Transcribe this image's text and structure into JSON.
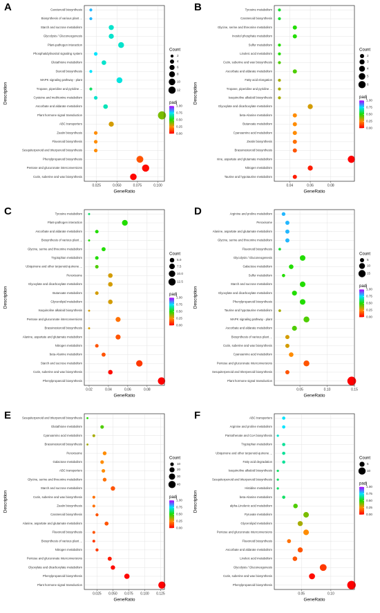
{
  "chart_data": [
    {
      "type": "scatter",
      "panel_label": "A",
      "xlabel": "GeneRatio",
      "ylabel": "Description",
      "categories": [
        "Carotenoid biosynthesis",
        "Biosynthesis of various plant ...",
        "Starch and sucrose metabolism",
        "Glycolysis / Gluconeogenesis",
        "Plant-pathogen interaction",
        "Phosphatidylinositol signaling system",
        "Glutathione metabolism",
        "Steroid biosynthesis",
        "MAPK signaling pathway - plant",
        "Tropane, piperidine and pyridine ...",
        "Cysteine and methionine metabolism",
        "Ascorbate and aldarate metabolism",
        "Plant hormone signal transduction",
        "ABC transporters",
        "Zeatin biosynthesis",
        "Flavonoid biosynthesis",
        "Sesquiterpenoid and triterpenoid biosynthesis",
        "Phenylpropanoid biosynthesis",
        "Pentose and glucuronate interconversions",
        "Cutin, suberine and wax biosynthesis"
      ],
      "x": [
        0.018,
        0.018,
        0.043,
        0.043,
        0.055,
        0.024,
        0.034,
        0.018,
        0.053,
        0.018,
        0.024,
        0.036,
        0.105,
        0.043,
        0.024,
        0.024,
        0.024,
        0.078,
        0.085,
        0.07
      ],
      "sizes": [
        2,
        2,
        6,
        6,
        8,
        3,
        5,
        2,
        8,
        2,
        3,
        5,
        15,
        6,
        3,
        3,
        3,
        11,
        12,
        10
      ],
      "padj": [
        0.8,
        0.8,
        0.7,
        0.7,
        0.7,
        0.75,
        0.7,
        0.75,
        0.72,
        0.6,
        0.7,
        0.68,
        0.4,
        0.3,
        0.25,
        0.25,
        0.25,
        0.15,
        0.02,
        0.01
      ],
      "xlim": [
        0.01,
        0.108
      ],
      "xticks": [
        0.025,
        {
          "value": 0.05,
          "label": "0.050"
        },
        0.075,
        {
          "value": 0.1,
          "label": "0.100"
        }
      ],
      "size_title": "Count",
      "size_ticks": [
        2,
        4,
        6,
        8,
        10,
        12
      ],
      "color_title": "padj",
      "color_ticks": [
        {
          "value": 1,
          "label": "1.00"
        },
        0.75,
        {
          "value": 0.5,
          "label": "0.50"
        },
        0.25,
        {
          "value": 0,
          "label": "0.00"
        }
      ],
      "colormap": [
        "#ff0000",
        "#ff8c00",
        "#22dd00",
        "#00e5ff",
        "#b000ff"
      ],
      "grid": true
    },
    {
      "type": "scatter",
      "panel_label": "B",
      "xlabel": "GeneRatio",
      "ylabel": "Description",
      "categories": [
        "Tyrosine metabolism",
        "Carotenoid biosynthesis",
        "Glycine, serine and threonine metabolism",
        "Inositol phosphate metabolism",
        "Sulfur metabolism",
        "Linoleic acid metabolism",
        "Cutin, suberine and wax biosynthesis",
        "Ascorbate and aldarate metabolism",
        "Fatty acid elongation",
        "Tropane, piperidine and pyridine ...",
        "Isoquinoline alkaloid biosynthesis",
        "Glyoxylate and dicarboxylate metabolism",
        "beta-Alanine metabolism",
        "Butanoate metabolism",
        "Cyanoamino acid metabolism",
        "Zeatin biosynthesis",
        "Brassinosteroid biosynthesis",
        "nine, aspartate and glutamate metabolism",
        "Nitrogen metabolism",
        "Taurine and hypotaurine metabolism"
      ],
      "x": [
        0.03,
        0.03,
        0.045,
        0.045,
        0.03,
        0.03,
        0.03,
        0.045,
        0.03,
        0.03,
        0.03,
        0.06,
        0.045,
        0.045,
        0.045,
        0.045,
        0.045,
        0.1,
        0.06,
        0.045
      ],
      "sizes": [
        1,
        1,
        2,
        2,
        1,
        1,
        1,
        2,
        1,
        1,
        1,
        3,
        2,
        2,
        2,
        2,
        2,
        6,
        3,
        2
      ],
      "padj": [
        0.55,
        0.55,
        0.5,
        0.5,
        0.5,
        0.5,
        0.45,
        0.45,
        0.35,
        0.35,
        0.35,
        0.3,
        0.25,
        0.25,
        0.25,
        0.2,
        0.15,
        0.0,
        0.05,
        0.05
      ],
      "xlim": [
        0.025,
        0.103
      ],
      "xticks": [
        0.04,
        0.06,
        0.08
      ],
      "size_title": "Count",
      "size_ticks": [
        2,
        3,
        4,
        5,
        6
      ],
      "color_title": "padj",
      "color_ticks": [
        {
          "value": 1,
          "label": "1.00"
        },
        0.75,
        {
          "value": 0.5,
          "label": "0.50"
        },
        0.25,
        {
          "value": 0,
          "label": "0.00"
        }
      ],
      "colormap": [
        "#ff0000",
        "#ff8c00",
        "#22dd00",
        "#00e5ff",
        "#b000ff"
      ],
      "grid": true
    },
    {
      "type": "scatter",
      "panel_label": "C",
      "xlabel": "GeneRatio",
      "ylabel": "Description",
      "categories": [
        "Tyrosine metabolism",
        "Plant-pathogen interaction",
        "Ascorbate and aldarate metabolism",
        "Biosynthesis of various plant ...",
        "Glycine, serine and threonine metabolism",
        "Tryptophan metabolism",
        "Ubiquinone and other terpenoid-quinone ...",
        "Peroxisome",
        "Glyoxylate and dicarboxylate metabolism",
        "Butanoate metabolism",
        "Glycerolipid metabolism",
        "Isoquinoline alkaloid biosynthesis",
        "Pentose and glucuronate interconversions",
        "Brassinosteroid biosynthesis",
        "Alanine, aspartate and glutamate metabolism",
        "Nitrogen metabolism",
        "beta-Alanine metabolism",
        "Starch and sucrose metabolism",
        "Cutin, suberine and wax biosynthesis",
        "Phenylpropanoid biosynthesis"
      ],
      "x": [
        0.02,
        0.057,
        0.028,
        0.02,
        0.035,
        0.028,
        0.028,
        0.042,
        0.042,
        0.028,
        0.042,
        0.02,
        0.05,
        0.02,
        0.05,
        0.028,
        0.035,
        0.072,
        0.042,
        0.095
      ],
      "sizes": [
        1,
        8,
        3,
        1,
        4,
        3,
        3,
        5,
        5,
        3,
        5,
        1,
        6,
        1,
        6,
        3,
        4,
        10,
        5,
        13
      ],
      "padj": [
        0.6,
        0.5,
        0.5,
        0.5,
        0.5,
        0.5,
        0.45,
        0.3,
        0.3,
        0.3,
        0.3,
        0.3,
        0.2,
        0.3,
        0.15,
        0.15,
        0.15,
        0.1,
        0.02,
        0.0
      ],
      "xlim": [
        0.015,
        0.098
      ],
      "xticks": [
        0.02,
        0.04,
        0.06,
        0.08
      ],
      "size_title": "Count",
      "size_ticks": [
        {
          "value": 5,
          "label": "5.0"
        },
        7.5,
        {
          "value": 10,
          "label": "10.0"
        },
        12.5
      ],
      "color_title": "padj",
      "color_ticks": [
        {
          "value": 1,
          "label": "1.00"
        },
        0.75,
        {
          "value": 0.5,
          "label": "0.50"
        },
        0.25,
        {
          "value": 0,
          "label": "0.00"
        }
      ],
      "colormap": [
        "#ff0000",
        "#ff8c00",
        "#22dd00",
        "#00e5ff",
        "#b000ff"
      ],
      "grid": true
    },
    {
      "type": "scatter",
      "panel_label": "D",
      "xlabel": "GeneRatio",
      "ylabel": "Description",
      "categories": [
        "Arginine and proline metabolism",
        "Peroxisome",
        "Alanine, aspartate and glutamate metabolism",
        "Glycine, serine and threonine metabolism",
        "Flavonoid biosynthesis",
        "Glycolysis / Gluconeogenesis",
        "Galactose metabolism",
        "Sulfur metabolism",
        "Starch and sucrose metabolism",
        "Glyoxylate and dicarboxylate metabolism",
        "Phenylpropanoid biosynthesis",
        "Taurine and hypotaurine metabolism",
        "MAPK signaling pathway - plant",
        "Ascorbate and aldarate metabolism",
        "Biosynthesis of various plant ...",
        "Cutin, suberine and wax biosynthesis",
        "Cyanoamino acid metabolism",
        "Pentose and glucuronate interconversions",
        "Sesquiterpenoid and triterpenoid biosynthesis",
        "Plant hormone signal transduction"
      ],
      "x": [
        0.02,
        0.027,
        0.027,
        0.027,
        0.013,
        0.055,
        0.034,
        0.02,
        0.055,
        0.04,
        0.055,
        0.013,
        0.062,
        0.04,
        0.027,
        0.027,
        0.034,
        0.062,
        0.027,
        0.145
      ],
      "sizes": [
        4,
        5,
        5,
        5,
        2,
        9,
        6,
        3,
        9,
        7,
        9,
        2,
        10,
        7,
        5,
        5,
        6,
        10,
        5,
        22
      ],
      "padj": [
        0.8,
        0.8,
        0.8,
        0.8,
        0.55,
        0.5,
        0.5,
        0.5,
        0.5,
        0.5,
        0.5,
        0.35,
        0.45,
        0.45,
        0.3,
        0.3,
        0.25,
        0.15,
        0.15,
        0.0
      ],
      "xlim": [
        0.003,
        0.15
      ],
      "xticks": [
        0.05,
        {
          "value": 0.1,
          "label": "0.10"
        },
        0.15
      ],
      "size_title": "Count",
      "size_ticks": [
        5,
        10,
        15
      ],
      "color_title": "padj",
      "color_ticks": [
        {
          "value": 1,
          "label": "1.00"
        },
        0.75,
        {
          "value": 0.5,
          "label": "0.50"
        },
        0.25,
        {
          "value": 0,
          "label": "0.00"
        }
      ],
      "colormap": [
        "#ff0000",
        "#ff8c00",
        "#22dd00",
        "#00e5ff",
        "#b000ff"
      ],
      "grid": true
    },
    {
      "type": "scatter",
      "panel_label": "E",
      "xlabel": "GeneRatio",
      "ylabel": "Description",
      "categories": [
        "Sesquiterpenoid and triterpenoid biosynthesis",
        "Glutathione metabolism",
        "Cyanoamino acid metabolism",
        "Brassinosteroid biosynthesis",
        "Peroxisome",
        "Galactose metabolism",
        "ABC transporters",
        "Glycine, serine and threonine metabolism",
        "Starch and sucrose metabolism",
        "Cutin, suberine and wax biosynthesis",
        "Zeatin biosynthesis",
        "Carotenoid biosynthesis",
        "Alanine, aspartate and glutamate metabolism",
        "Flavonoid biosynthesis",
        "Biosynthesis of various plant ...",
        "Nitrogen metabolism",
        "Pentose and glucuronate interconversions",
        "Glyoxylate and dicarboxylate metabolism",
        "Phenylpropanoid biosynthesis",
        "Plant hormone signal transduction"
      ],
      "x": [
        0.01,
        0.033,
        0.02,
        0.01,
        0.037,
        0.033,
        0.035,
        0.037,
        0.05,
        0.02,
        0.02,
        0.025,
        0.04,
        0.02,
        0.02,
        0.025,
        0.045,
        0.05,
        0.072,
        0.127
      ],
      "sizes": [
        3,
        10,
        6,
        3,
        11,
        10,
        10,
        11,
        15,
        6,
        6,
        7,
        12,
        6,
        6,
        7,
        13,
        15,
        22,
        40
      ],
      "padj": [
        0.5,
        0.45,
        0.35,
        0.35,
        0.25,
        0.25,
        0.25,
        0.2,
        0.15,
        0.2,
        0.2,
        0.15,
        0.15,
        0.15,
        0.1,
        0.1,
        0.05,
        0.02,
        0.01,
        0.0
      ],
      "xlim": [
        0.005,
        0.131
      ],
      "xticks": [
        0.025,
        {
          "value": 0.05,
          "label": "0.050"
        },
        0.075,
        {
          "value": 0.1,
          "label": "0.100"
        },
        0.125
      ],
      "size_title": "Count",
      "size_ticks": [
        10,
        20,
        30,
        40
      ],
      "color_title": "padj",
      "color_ticks": [
        {
          "value": 1,
          "label": "1.00"
        },
        0.75,
        {
          "value": 0.5,
          "label": "0.50"
        },
        0.25,
        {
          "value": 0,
          "label": "0.00"
        }
      ],
      "colormap": [
        "#ff0000",
        "#ff8c00",
        "#22dd00",
        "#00e5ff",
        "#b000ff"
      ],
      "grid": true
    },
    {
      "type": "scatter",
      "panel_label": "F",
      "xlabel": "GeneRatio",
      "ylabel": "Description",
      "categories": [
        "ABC transporters",
        "Arginine and proline metabolism",
        "Pantothenate and CoA biosynthesis",
        "Tryptophan metabolism",
        "Ubiquinone and other terpenoid-quinone ...",
        "Fatty acid degradation",
        "Isoquinoline alkaloid biosynthesis",
        "Sesquiterpenoid and triterpenoid biosynthesis",
        "Histidine metabolism",
        "beta-Alanine metabolism",
        "alpha-Linolenic acid metabolism",
        "Pyruvate metabolism",
        "Glycerolipid metabolism",
        "Pentose and glucuronate interconversions",
        "Flavonoid biosynthesis",
        "Ascorbate and aldarate metabolism",
        "Linoleic acid metabolism",
        "Glycolysis / Gluconeogenesis",
        "Cutin, suberine and wax biosynthesis",
        "Phenylpropanoid biosynthesis"
      ],
      "x": [
        0.02,
        0.02,
        0.01,
        0.02,
        0.02,
        0.02,
        0.01,
        0.01,
        0.01,
        0.02,
        0.04,
        0.058,
        0.048,
        0.058,
        0.029,
        0.048,
        0.039,
        0.087,
        0.068,
        0.135
      ],
      "sizes": [
        2,
        2,
        1,
        2,
        2,
        2,
        1,
        1,
        1,
        2,
        4,
        6,
        5,
        6,
        3,
        5,
        4,
        9,
        7,
        14
      ],
      "padj": [
        0.75,
        0.75,
        0.7,
        0.65,
        0.65,
        0.65,
        0.6,
        0.6,
        0.6,
        0.6,
        0.45,
        0.4,
        0.35,
        0.25,
        0.2,
        0.15,
        0.15,
        0.1,
        0.02,
        0.0
      ],
      "xlim": [
        0.004,
        0.14
      ],
      "xticks": [
        0.05,
        {
          "value": 0.1,
          "label": "0.10"
        }
      ],
      "size_title": "Count",
      "size_ticks": [
        5,
        10
      ],
      "color_title": "padj",
      "color_ticks": [
        {
          "value": 1,
          "label": "1.00"
        },
        0.75,
        {
          "value": 0.5,
          "label": "0.50"
        },
        0.25,
        {
          "value": 0,
          "label": "0.00"
        }
      ],
      "colormap": [
        "#ff0000",
        "#ff8c00",
        "#22dd00",
        "#00e5ff",
        "#b000ff"
      ],
      "grid": true
    }
  ]
}
